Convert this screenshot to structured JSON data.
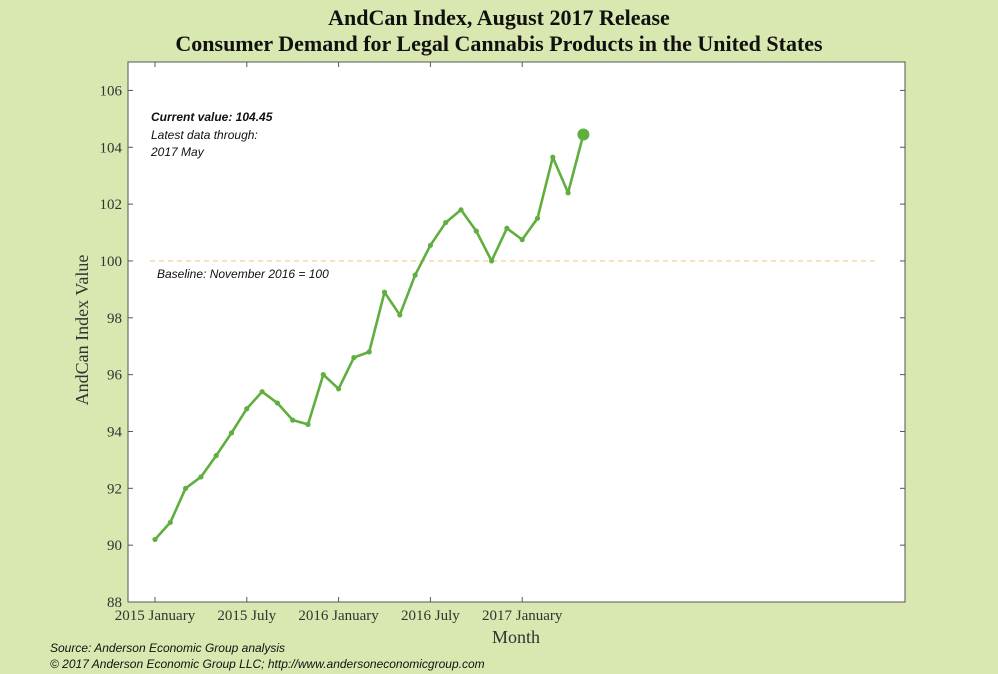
{
  "title_line_1": "AndCan Index, August 2017 Release",
  "title_line_2": "Consumer Demand for Legal Cannabis Products in the United States",
  "footer": {
    "source": "Source: Anderson Economic Group analysis",
    "copyright": "© 2017 Anderson Economic Group LLC; http://www.andersoneconomicgroup.com"
  },
  "colors": {
    "background": "#d9e8b0",
    "plot_background": "#ffffff",
    "series": "#5fae3e",
    "baseline": "#f5c98a"
  },
  "chart_data": {
    "type": "line",
    "title": "AndCan Index, August 2017 Release",
    "subtitle": "Consumer Demand for Legal Cannabis Products in the United States",
    "xlabel": "Month",
    "ylabel": "AndCan Index Value",
    "ylim": [
      88,
      107
    ],
    "yticks": [
      88,
      90,
      92,
      94,
      96,
      98,
      100,
      102,
      104,
      106
    ],
    "xticks": [
      {
        "label": "2015 January",
        "x": "2015-01"
      },
      {
        "label": "2015 July",
        "x": "2015-07"
      },
      {
        "label": "2016 January",
        "x": "2016-01"
      },
      {
        "label": "2016 July",
        "x": "2016-07"
      },
      {
        "label": "2017 January",
        "x": "2017-01"
      }
    ],
    "x": [
      "2015-01",
      "2015-02",
      "2015-03",
      "2015-04",
      "2015-05",
      "2015-06",
      "2015-07",
      "2015-08",
      "2015-09",
      "2015-10",
      "2015-11",
      "2015-12",
      "2016-01",
      "2016-02",
      "2016-03",
      "2016-04",
      "2016-05",
      "2016-06",
      "2016-07",
      "2016-08",
      "2016-09",
      "2016-10",
      "2016-11",
      "2016-12",
      "2017-01",
      "2017-02",
      "2017-03",
      "2017-04",
      "2017-05"
    ],
    "series": [
      {
        "values": [
          90.2,
          90.8,
          92.0,
          92.4,
          93.15,
          93.95,
          94.8,
          95.4,
          95.0,
          94.4,
          94.25,
          96.0,
          95.5,
          96.6,
          96.8,
          98.9,
          98.1,
          99.5,
          100.55,
          101.35,
          101.8,
          101.05,
          100.0,
          101.15,
          100.75,
          101.5,
          103.65,
          102.4,
          104.45
        ]
      }
    ],
    "baseline": {
      "value": 100,
      "label": "Baseline: November 2016 = 100"
    },
    "annotation": {
      "current_value": "Current value: 104.45",
      "latest_line_1": "Latest data through:",
      "latest_line_2": "2017 May"
    },
    "grid": false
  }
}
